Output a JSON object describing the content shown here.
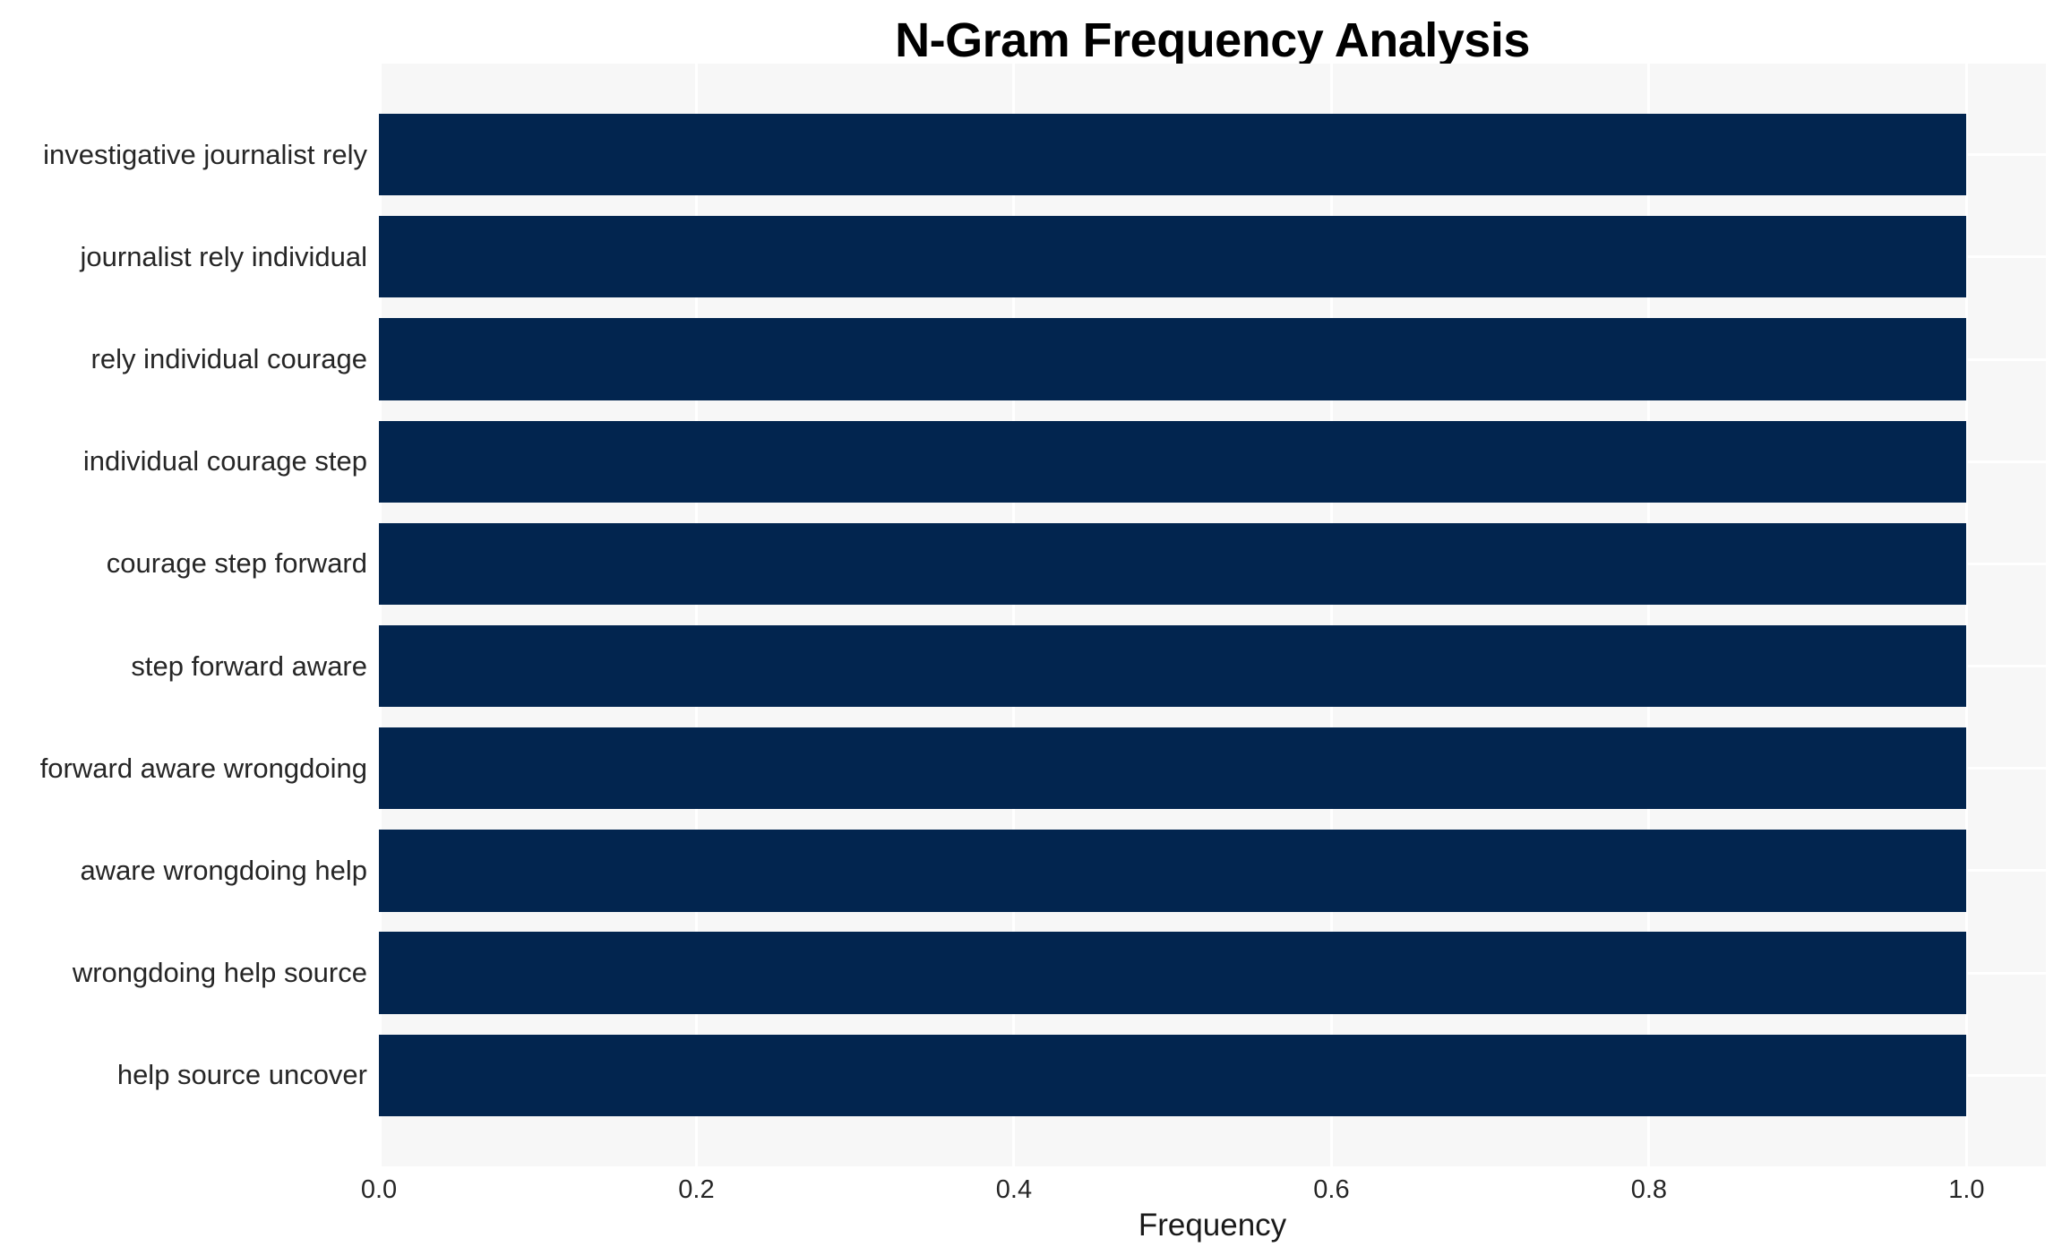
{
  "chart_data": {
    "type": "bar",
    "orientation": "horizontal",
    "title": "N-Gram Frequency Analysis",
    "xlabel": "Frequency",
    "ylabel": "",
    "categories": [
      "investigative journalist rely",
      "journalist rely individual",
      "rely individual courage",
      "individual courage step",
      "courage step forward",
      "step forward aware",
      "forward aware wrongdoing",
      "aware wrongdoing help",
      "wrongdoing help source",
      "help source uncover"
    ],
    "values": [
      1.0,
      1.0,
      1.0,
      1.0,
      1.0,
      1.0,
      1.0,
      1.0,
      1.0,
      1.0
    ],
    "xticks": [
      "0.0",
      "0.2",
      "0.4",
      "0.6",
      "0.8",
      "1.0"
    ],
    "xlim": [
      0,
      1.05
    ],
    "grid": "white vertical gridlines at x ticks and horizontal gridlines at bar centers, drawn behind bars",
    "legend": "none",
    "colors": {
      "bar": "#02254f",
      "plot_background": "#f7f7f7",
      "page_background": "#ffffff",
      "grid_line": "#ffffff",
      "tick_text": "#262626",
      "title_text": "#000000"
    }
  }
}
